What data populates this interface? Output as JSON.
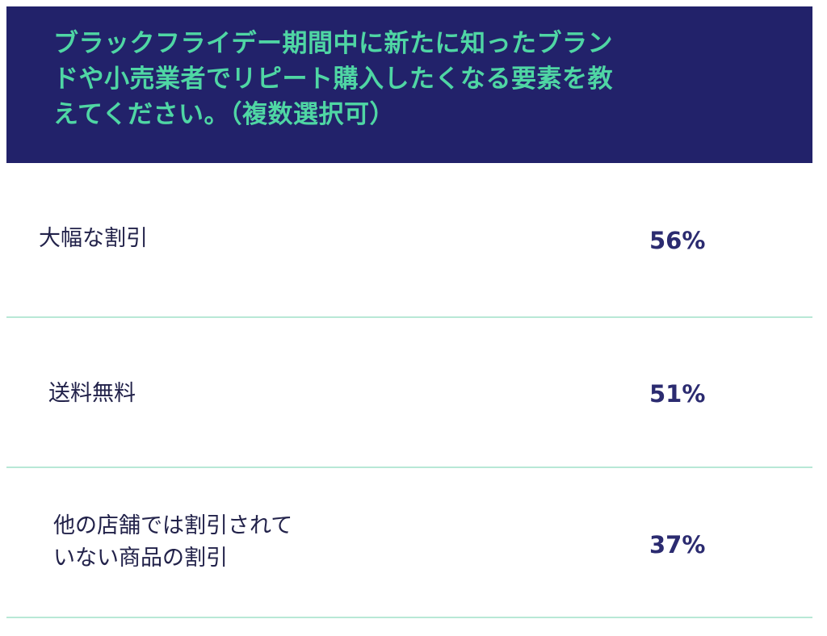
{
  "chart_data": {
    "type": "table",
    "title": "ブラックフライデー期間中に新たに知ったブランドや小売業者でリピート購入したくなる要素を教えてください。（複数選択可）",
    "rows": [
      {
        "label": "大幅な割引",
        "value": 56,
        "display": "56%"
      },
      {
        "label": "送料無料",
        "value": 51,
        "display": "51%"
      },
      {
        "label": "他の店舗では割引されていない商品の割引",
        "value": 37,
        "display": "37%"
      }
    ]
  },
  "header": {
    "line1": "ブラックフライデー期間中に新たに知ったブラン",
    "line2": "ドや小売業者でリピート購入したくなる要素を教",
    "line3": "えてください。（複数選択可）"
  },
  "rows": [
    {
      "label_line1": "大幅な割引",
      "value": "56%"
    },
    {
      "label_line1": "送料無料",
      "value": "51%"
    },
    {
      "label_line1": "他の店舗では割引されて",
      "label_line2": "いない商品の割引",
      "value": "37%"
    }
  ],
  "colors": {
    "header_bg": "#22226a",
    "header_text": "#4fd6a4",
    "label_text": "#22224a",
    "value_text": "#2b2b70",
    "divider": "#b8e8d6"
  }
}
